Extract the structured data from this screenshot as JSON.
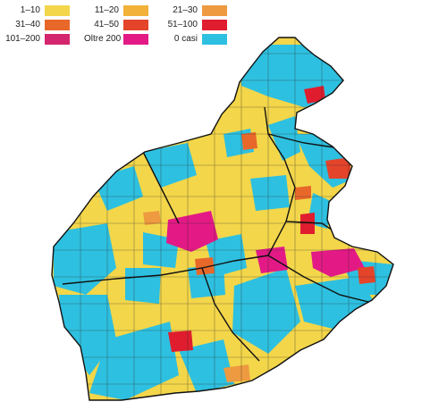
{
  "legend": [
    {
      "label": "1–10",
      "color": "#f3d64a"
    },
    {
      "label": "11–20",
      "color": "#f2b138"
    },
    {
      "label": "21–30",
      "color": "#ee9a40"
    },
    {
      "label": "31–40",
      "color": "#e8682a"
    },
    {
      "label": "41–50",
      "color": "#e4442a"
    },
    {
      "label": "51–100",
      "color": "#e01d2e"
    },
    {
      "label": "101–200",
      "color": "#d3266e"
    },
    {
      "label": "Oltre 200",
      "color": "#e31a86"
    },
    {
      "label": "0 casi",
      "color": "#2ec0e0"
    }
  ],
  "map": {
    "base_color": "#f3d64a",
    "zero_color": "#2ec0e0",
    "border_color": "#1a1a1a"
  }
}
